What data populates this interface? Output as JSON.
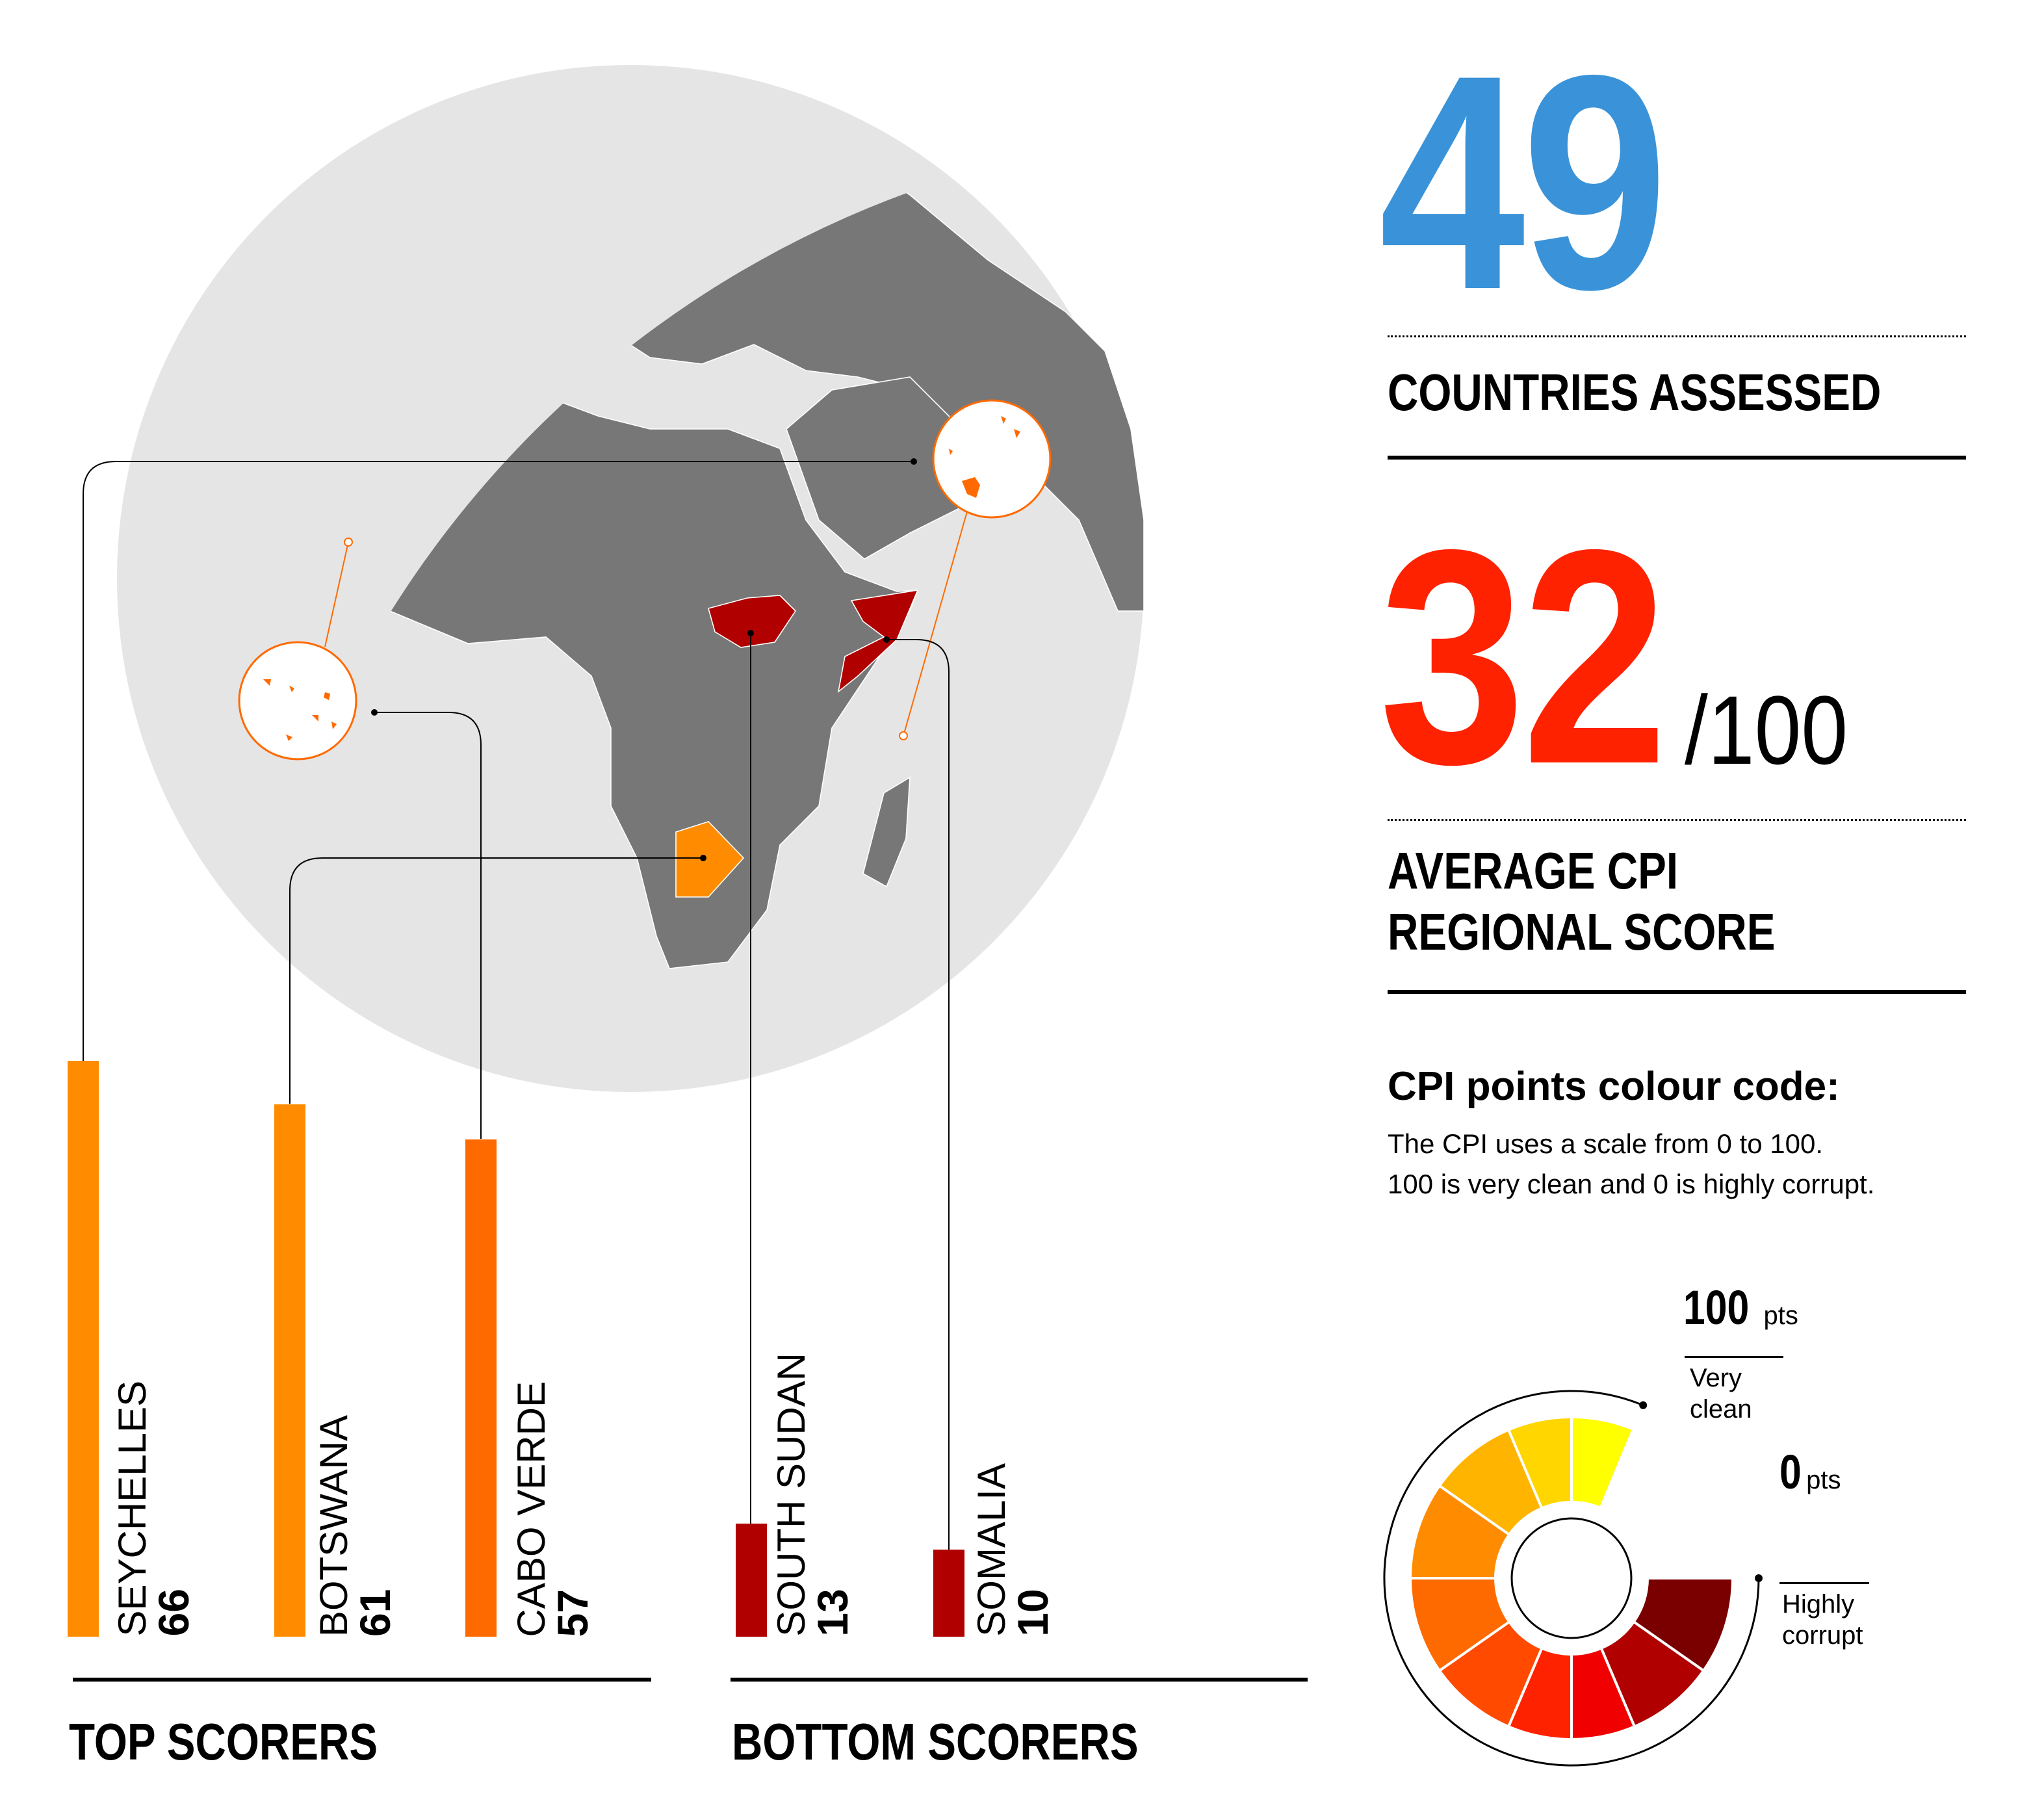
{
  "stats": {
    "countries_value": "49",
    "countries_label": "COUNTRIES  ASSESSED",
    "average_value": "32",
    "average_suffix": "/100",
    "average_label_line1": "AVERAGE CPI",
    "average_label_line2": "REGIONAL SCORE",
    "blue": "#3a93d8",
    "red": "#ff2200"
  },
  "legend": {
    "title": "CPI points colour code:",
    "desc_line1": "The CPI uses a scale from 0 to 100.",
    "desc_line2": "100 is very clean and 0 is highly corrupt.",
    "top_value": "100",
    "top_unit": "pts",
    "top_desc1": "Very",
    "top_desc2": "clean",
    "bottom_value": "0",
    "bottom_unit": "pts",
    "bottom_desc1": "Highly",
    "bottom_desc2": "corrupt",
    "colors_low_to_high": [
      "#7a0000",
      "#b00000",
      "#f00000",
      "#ff2200",
      "#ff4a00",
      "#ff6a00",
      "#ff8c00",
      "#ffb400",
      "#ffd600",
      "#ffff00"
    ]
  },
  "chart_data": {
    "type": "bar",
    "categories": [
      "SEYCHELLES",
      "BOTSWANA",
      "CABO VERDE",
      "SOUTH SUDAN",
      "SOMALIA"
    ],
    "values": [
      66,
      61,
      57,
      13,
      10
    ],
    "groups": [
      {
        "label": "TOP SCORERS",
        "members": [
          "SEYCHELLES",
          "BOTSWANA",
          "CABO VERDE"
        ]
      },
      {
        "label": "BOTTOM SCORERS",
        "members": [
          "SOUTH SUDAN",
          "SOMALIA"
        ]
      }
    ],
    "colors": [
      "#ff8c00",
      "#ff8c00",
      "#ff6a00",
      "#b00000",
      "#b00000"
    ],
    "ylim": [
      0,
      100
    ]
  },
  "map": {
    "ocean": "#e5e5e5",
    "land": "#777777",
    "highlight_top": "#ff8c00",
    "highlight_bottom": "#b00000"
  }
}
